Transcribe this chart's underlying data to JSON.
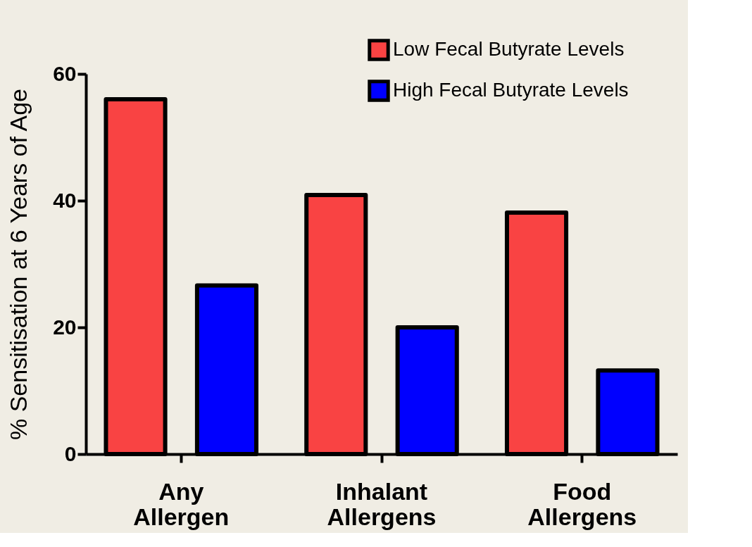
{
  "chart_data": {
    "type": "bar",
    "ylabel": "% Sensitisation at 6 Years of Age",
    "categories": [
      "Any Allergen",
      "Inhalant Allergens",
      "Food Allergens"
    ],
    "series": [
      {
        "name": "Low Fecal Butyrate Levels",
        "color": "#f94343",
        "values": [
          56.0,
          40.9,
          38.1
        ]
      },
      {
        "name": "High Fecal Butyrate Levels",
        "color": "#0000ff",
        "values": [
          26.6,
          20.0,
          13.2
        ]
      }
    ],
    "ylim": [
      0,
      60
    ],
    "yticks": [
      0,
      20,
      40,
      60
    ],
    "grid": false,
    "legend": "top right"
  }
}
